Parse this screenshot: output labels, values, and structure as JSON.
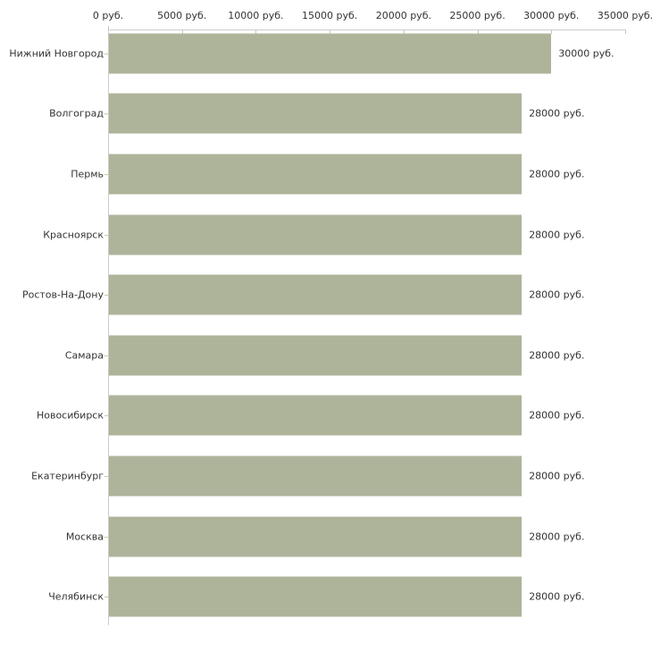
{
  "chart_data": {
    "type": "bar",
    "orientation": "horizontal",
    "title": "",
    "categories": [
      "Нижний Новгород",
      "Волгоград",
      "Пермь",
      "Красноярск",
      "Ростов-На-Дону",
      "Самара",
      "Новосибирск",
      "Екатеринбург",
      "Москва",
      "Челябинск"
    ],
    "values": [
      30000,
      28000,
      28000,
      28000,
      28000,
      28000,
      28000,
      28000,
      28000,
      28000
    ],
    "value_labels": [
      "30000 руб.",
      "28000 руб.",
      "28000 руб.",
      "28000 руб.",
      "28000 руб.",
      "28000 руб.",
      "28000 руб.",
      "28000 руб.",
      "28000 руб.",
      "28000 руб."
    ],
    "x_axis": {
      "position": "top",
      "unit": "руб.",
      "ticks": [
        0,
        5000,
        10000,
        15000,
        20000,
        25000,
        30000,
        35000
      ],
      "tick_labels": [
        "0 руб.",
        "5000 руб.",
        "10000 руб.",
        "15000 руб.",
        "20000 руб.",
        "25000 руб.",
        "30000 руб.",
        "35000 руб."
      ],
      "xlim": [
        0,
        35000
      ]
    },
    "grid": false,
    "legend": false,
    "colors": {
      "bar": "#adb49a",
      "axis_line": "#cccccc",
      "tick_mark": "#c9c9a9",
      "text": "#333333",
      "background": "#ffffff"
    }
  }
}
